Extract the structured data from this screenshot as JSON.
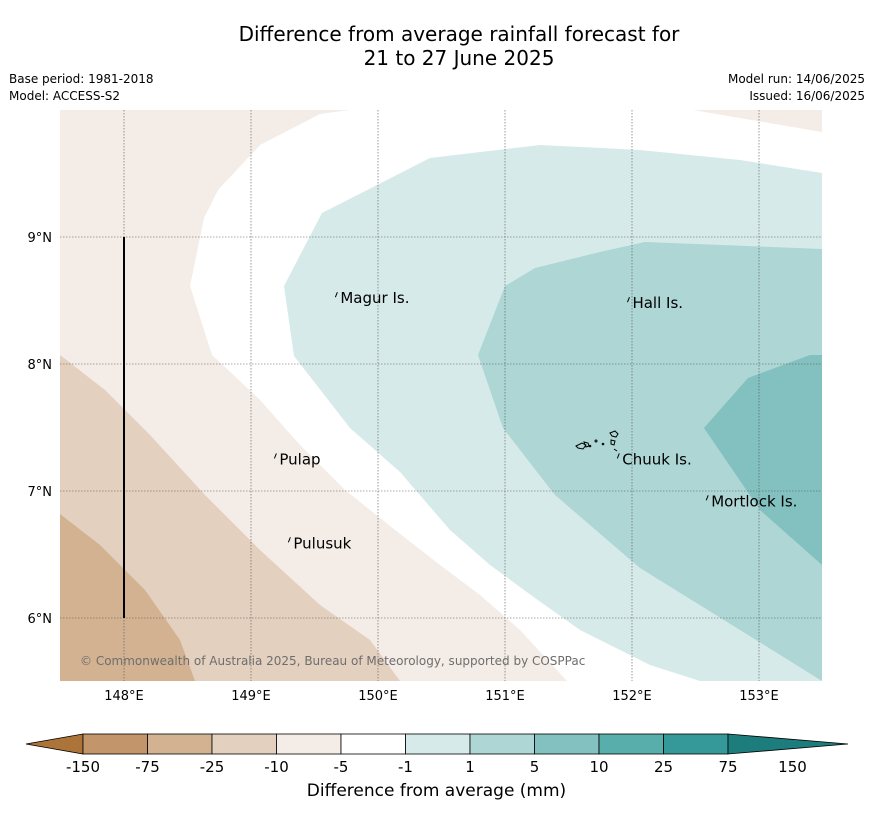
{
  "header": {
    "title_line1": "Difference from average rainfall forecast for",
    "title_line2": "21 to 27 June 2025",
    "base_period": "Base period: 1981-2018",
    "model": "Model: ACCESS-S2",
    "model_run": "Model run: 14/06/2025",
    "issued": "Issued: 16/06/2025"
  },
  "map": {
    "lon_ticks": [
      "148°E",
      "149°E",
      "150°E",
      "151°E",
      "152°E",
      "153°E"
    ],
    "lat_ticks": [
      "9°N",
      "8°N",
      "7°N",
      "6°N"
    ],
    "places": [
      {
        "name": "Magur Is.",
        "lon": 149.68,
        "lat": 8.55
      },
      {
        "name": "Hall Is.",
        "lon": 151.98,
        "lat": 8.51
      },
      {
        "name": "Pulap",
        "lon": 149.2,
        "lat": 7.28
      },
      {
        "name": "Chuuk Is.",
        "lon": 151.9,
        "lat": 7.28
      },
      {
        "name": "Mortlock Is.",
        "lon": 152.6,
        "lat": 6.95
      },
      {
        "name": "Pulusuk",
        "lon": 149.31,
        "lat": 6.62
      }
    ],
    "copyright": "© Commonwealth of Australia 2025, Bureau of Meteorology, supported by COSPPac"
  },
  "colorbar": {
    "ticks": [
      "-150",
      "-75",
      "-25",
      "-10",
      "-5",
      "-1",
      "1",
      "5",
      "10",
      "25",
      "75",
      "150"
    ],
    "colors": [
      "#ad7439",
      "#c3956a",
      "#d3b292",
      "#e3d0bf",
      "#f4ece6",
      "#ffffff",
      "#d6eae9",
      "#add6d5",
      "#82c1bf",
      "#58aeab",
      "#35999a",
      "#1d7d7d"
    ],
    "label": "Difference from average (mm)"
  }
}
